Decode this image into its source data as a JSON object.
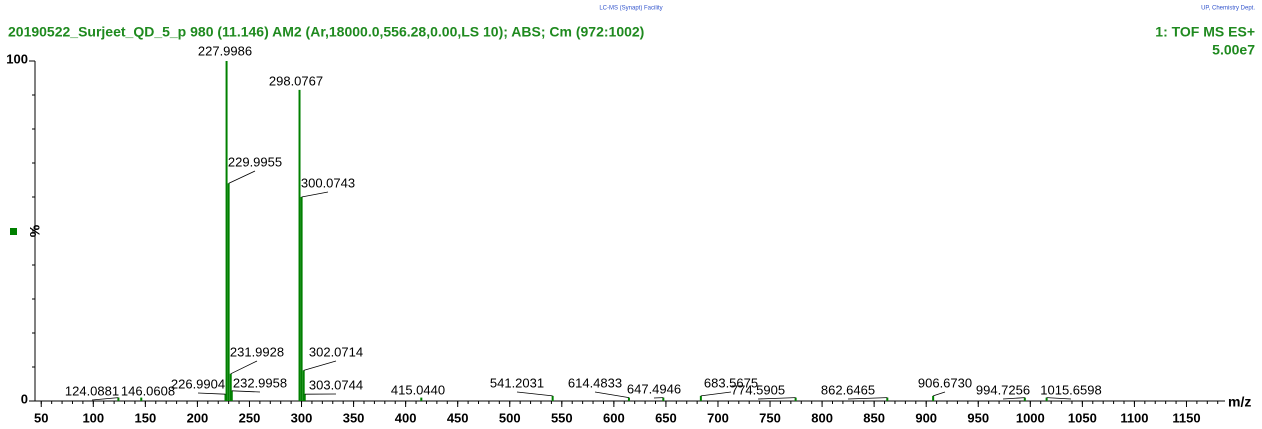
{
  "chart_data": {
    "type": "bar",
    "facility": "LC-MS (Synapt) Facility",
    "department": "UP, Chemistry Dept.",
    "title": "20190522_Surjeet_QD_5_p 980 (11.146) AM2 (Ar,18000.0,556.28,0.00,LS 10); ABS; Cm (972:1002)",
    "scan_label": "1: TOF MS ES+",
    "intensity_label": "5.00e7",
    "ylabel": "%",
    "xlabel": "m/z",
    "color": "#008000",
    "x": [
      124.0881,
      146.0608,
      226.9904,
      227.9986,
      229.9955,
      231.9928,
      232.9958,
      298.0767,
      300.0743,
      302.0714,
      303.0744,
      415.044,
      541.2031,
      614.4833,
      647.4946,
      683.5675,
      774.5905,
      862.6465,
      906.673,
      994.7256,
      1015.6598
    ],
    "x_labels": [
      "124.0881",
      "146.0608",
      "226.9904",
      "227.9986",
      "229.9955",
      "231.9928",
      "232.9958",
      "298.0767",
      "300.0743",
      "302.0714",
      "303.0744",
      "415.0440",
      "541.2031",
      "614.4833",
      "647.4946",
      "683.5675",
      "774.5905",
      "862.6465",
      "906.6730",
      "994.7256",
      "1015.6598"
    ],
    "values": [
      1,
      1,
      2,
      100,
      64,
      8,
      3,
      91.5,
      60,
      9,
      2,
      1,
      1.5,
      1,
      1,
      1.5,
      1,
      1,
      1.5,
      1,
      1
    ],
    "xlim": [
      44,
      1187
    ],
    "xticks": [
      50,
      100,
      150,
      200,
      250,
      300,
      350,
      400,
      450,
      500,
      550,
      600,
      650,
      700,
      750,
      800,
      850,
      900,
      950,
      1000,
      1050,
      1100,
      1150
    ],
    "ylim": [
      0,
      100
    ],
    "yticks": [
      0,
      100
    ]
  }
}
